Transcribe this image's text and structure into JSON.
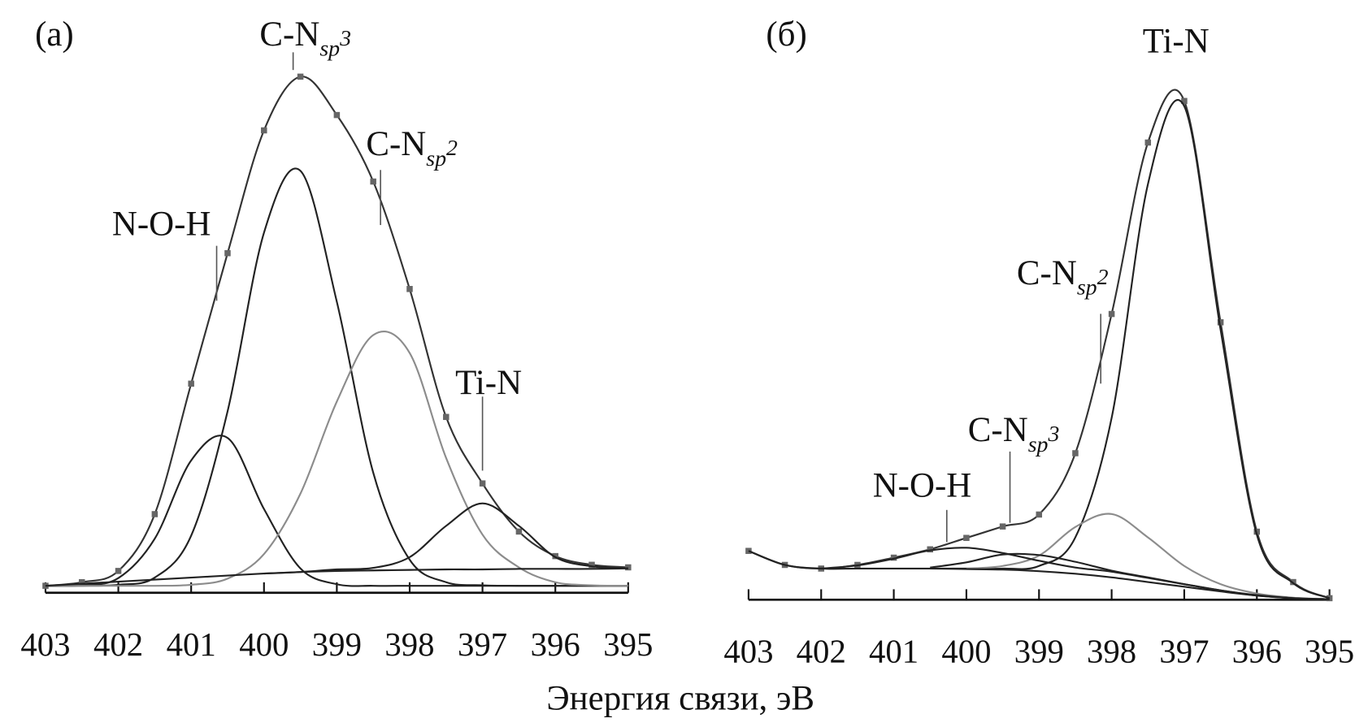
{
  "chart_data": [
    {
      "type": "line",
      "panel_label": "(a)",
      "x": [
        403,
        402.5,
        402,
        401.5,
        401,
        400.5,
        400,
        399.5,
        399,
        398.5,
        398,
        397.5,
        397,
        396.5,
        396,
        395.5,
        395
      ],
      "xlim": [
        403,
        395
      ],
      "ylim": [
        0,
        100
      ],
      "xticks": [
        403,
        402,
        401,
        400,
        399,
        398,
        397,
        396,
        395
      ],
      "series": [
        {
          "color": "#333333",
          "marker": "square",
          "marker_color": "#666666",
          "values": [
            0,
            0.7,
            2.9,
            14,
            39.5,
            65,
            89,
            99.5,
            92,
            79,
            58,
            33,
            20,
            10.6,
            5.8,
            4.1,
            3.6
          ]
        },
        {
          "color": "#222222",
          "values": [
            0,
            0.1,
            1.5,
            9.2,
            24.5,
            28.9,
            15,
            3.4,
            0.3,
            0,
            0,
            0,
            0,
            0,
            0,
            0,
            0
          ]
        },
        {
          "color": "#222222",
          "values": [
            0,
            0,
            0.2,
            1.6,
            9.8,
            34.1,
            69,
            81.1,
            55.5,
            22.1,
            5.1,
            0.7,
            0.1,
            0,
            0,
            0,
            0
          ]
        },
        {
          "color": "#8c8c8c",
          "values": [
            0,
            0,
            0,
            0,
            0.2,
            1.4,
            6.2,
            18,
            36,
            49,
            45.5,
            25,
            10,
            3.6,
            0.7,
            0.1,
            0
          ]
        },
        {
          "color": "#222222",
          "values": [
            null,
            null,
            null,
            null,
            null,
            null,
            2.4,
            2.7,
            3.2,
            3.5,
            5.6,
            11.7,
            16.1,
            11.7,
            5.6,
            3.8,
            3.4
          ]
        },
        {
          "color": "#222222",
          "values": [
            0,
            0.4,
            0.8,
            1.2,
            1.6,
            2.0,
            2.4,
            2.7,
            2.9,
            3.0,
            3.1,
            3.2,
            3.2,
            3.3,
            3.3,
            3.3,
            3.4
          ]
        }
      ],
      "annotations": [
        {
          "text": "N-O-H",
          "x": 400.65,
          "y": 55.7
        },
        {
          "text": "C-N",
          "sub": "sp",
          "sup": "3",
          "x": 399.6,
          "y": 100.8
        },
        {
          "text": "C-N",
          "sub": "sp",
          "sup": "2",
          "x": 398.4,
          "y": 70.5
        },
        {
          "text": "Ti-N",
          "x": 397.0,
          "y": 22.5
        }
      ]
    },
    {
      "type": "line",
      "panel_label": "(б)",
      "x": [
        403,
        402.5,
        402,
        401.5,
        401,
        400.5,
        400,
        399.5,
        399,
        398.5,
        398,
        397.5,
        397,
        396.5,
        396,
        395.5,
        395
      ],
      "xlim": [
        403,
        395
      ],
      "ylim": [
        0,
        100
      ],
      "xticks": [
        403,
        402,
        401,
        400,
        399,
        398,
        397,
        396,
        395
      ],
      "series": [
        {
          "color": "#333333",
          "marker": "square",
          "marker_color": "#666666",
          "values": [
            9.4,
            6.7,
            6.0,
            6.7,
            8.1,
            9.7,
            11.9,
            14.1,
            16.4,
            28.2,
            55,
            88,
            96,
            53.4,
            13.1,
            3.4,
            0.3
          ]
        },
        {
          "color": "#222222",
          "values": [
            null,
            null,
            null,
            null,
            null,
            6.0,
            6.0,
            6.0,
            6.5,
            12,
            35,
            80,
            95,
            52,
            12.5,
            3.2,
            0.3
          ]
        },
        {
          "color": "#8c8c8c",
          "values": [
            null,
            null,
            null,
            null,
            null,
            null,
            6.0,
            6.5,
            8.5,
            14,
            16.5,
            12,
            6.5,
            3.0,
            1.2,
            0.4,
            0.1
          ]
        },
        {
          "color": "#222222",
          "values": [
            null,
            null,
            null,
            null,
            null,
            6.2,
            7.2,
            8.7,
            8.6,
            7.3,
            5.6,
            4.3,
            3.0,
            1.8,
            0.9,
            0.3,
            0.1
          ]
        },
        {
          "color": "#222222",
          "values": [
            null,
            null,
            6.0,
            6.6,
            7.9,
            9.5,
            10.0,
            9.0,
            7.5,
            6.2,
            5.4,
            4.2,
            3.0,
            1.8,
            0.8,
            0.3,
            0.1
          ]
        },
        {
          "color": "#222222",
          "values": [
            9.4,
            6.7,
            6.0,
            6.0,
            6.0,
            6.0,
            5.9,
            5.8,
            5.5,
            5.0,
            4.3,
            3.4,
            2.5,
            1.6,
            0.8,
            0.3,
            0.1
          ]
        }
      ],
      "annotations": [
        {
          "text": "Ti-N"
        },
        {
          "text": "C-N",
          "sub": "sp",
          "sup": "2",
          "x": 398.15,
          "y": 41.6
        },
        {
          "text": "C-N",
          "sub": "sp",
          "sup": "3",
          "x": 399.4,
          "y": 14.8
        },
        {
          "text": "N-O-H",
          "x": 400.27,
          "y": 11.1
        }
      ]
    }
  ],
  "xlabel": "Энергия связи, эВ"
}
